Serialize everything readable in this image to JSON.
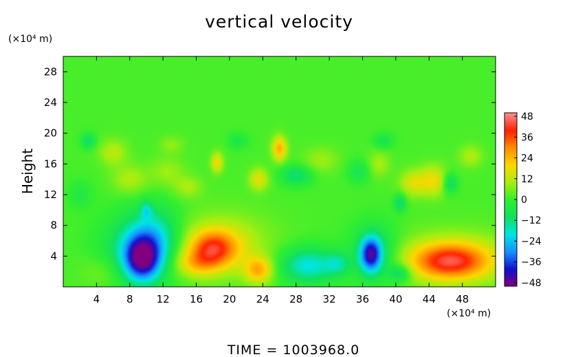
{
  "chart_data": {
    "type": "heatmap",
    "title": "vertical velocity",
    "ylabel": "Height",
    "x_unit_label": "(×10⁴ m)",
    "y_unit_label": "(×10⁴ m)",
    "footer": "TIME  =  1003968.0",
    "xlim": [
      0,
      52
    ],
    "ylim": [
      0,
      30
    ],
    "x_ticks": [
      4,
      8,
      12,
      16,
      20,
      24,
      28,
      32,
      36,
      40,
      44,
      48
    ],
    "y_ticks": [
      4,
      8,
      12,
      16,
      20,
      24,
      28
    ],
    "colorbar": {
      "min": -50,
      "max": 50,
      "ticks": [
        48,
        36,
        24,
        12,
        0,
        -12,
        -24,
        -36,
        -48
      ],
      "tick_labels": [
        "48",
        "36",
        "24",
        "12",
        "0",
        "−12",
        "−24",
        "−36",
        "−48"
      ],
      "colormap": [
        "#800080",
        "#1010d0",
        "#1890ff",
        "#00e5e5",
        "#10e060",
        "#30ee30",
        "#a8ee10",
        "#ffd700",
        "#ff8c00",
        "#ff2000",
        "#ff9090"
      ]
    },
    "background_value": 2,
    "features": [
      {
        "x": 9.5,
        "y": 3.6,
        "sx": 1.5,
        "sy": 2.0,
        "amp": -40
      },
      {
        "x": 9.4,
        "y": 5.0,
        "sx": 3.0,
        "sy": 3.0,
        "amp": -20
      },
      {
        "x": 11.0,
        "y": 7.0,
        "sx": 2.0,
        "sy": 2.5,
        "amp": -12
      },
      {
        "x": 18.0,
        "y": 5.0,
        "sx": 2.0,
        "sy": 1.6,
        "amp": 28
      },
      {
        "x": 19.0,
        "y": 5.5,
        "sx": 4.0,
        "sy": 2.8,
        "amp": 13
      },
      {
        "x": 16.0,
        "y": 3.0,
        "sx": 2.0,
        "sy": 1.2,
        "amp": 15
      },
      {
        "x": 23.5,
        "y": 2.2,
        "sx": 1.2,
        "sy": 1.2,
        "amp": 22
      },
      {
        "x": 29.5,
        "y": 2.8,
        "sx": 2.4,
        "sy": 1.6,
        "amp": -22
      },
      {
        "x": 33.0,
        "y": 3.0,
        "sx": 1.0,
        "sy": 1.0,
        "amp": -12
      },
      {
        "x": 37.0,
        "y": 4.2,
        "sx": 0.9,
        "sy": 1.6,
        "amp": -38
      },
      {
        "x": 37.5,
        "y": 4.5,
        "sx": 2.0,
        "sy": 2.5,
        "amp": -14
      },
      {
        "x": 46.5,
        "y": 3.3,
        "sx": 3.2,
        "sy": 1.6,
        "amp": 32
      },
      {
        "x": 47.0,
        "y": 3.8,
        "sx": 5.0,
        "sy": 2.4,
        "amp": 12
      },
      {
        "x": 40.5,
        "y": 1.8,
        "sx": 1.0,
        "sy": 0.8,
        "amp": -15
      },
      {
        "x": 5.0,
        "y": 2.0,
        "sx": 2.0,
        "sy": 1.5,
        "amp": 5
      },
      {
        "x": 26.0,
        "y": 18.0,
        "sx": 0.6,
        "sy": 1.1,
        "amp": 24
      },
      {
        "x": 18.5,
        "y": 16.2,
        "sx": 0.5,
        "sy": 0.9,
        "amp": 17
      },
      {
        "x": 6.0,
        "y": 17.5,
        "sx": 1.2,
        "sy": 1.2,
        "amp": 10
      },
      {
        "x": 3.0,
        "y": 19.0,
        "sx": 0.6,
        "sy": 0.7,
        "amp": -13
      },
      {
        "x": 28.0,
        "y": 14.5,
        "sx": 1.3,
        "sy": 0.9,
        "amp": -14
      },
      {
        "x": 23.5,
        "y": 14.0,
        "sx": 0.8,
        "sy": 1.0,
        "amp": 15
      },
      {
        "x": 31.0,
        "y": 16.5,
        "sx": 1.5,
        "sy": 1.2,
        "amp": 7
      },
      {
        "x": 35.5,
        "y": 15.0,
        "sx": 0.9,
        "sy": 1.0,
        "amp": -9
      },
      {
        "x": 38.0,
        "y": 16.0,
        "sx": 0.9,
        "sy": 1.2,
        "amp": 8
      },
      {
        "x": 42.0,
        "y": 13.5,
        "sx": 1.1,
        "sy": 1.2,
        "amp": 13
      },
      {
        "x": 44.5,
        "y": 13.8,
        "sx": 1.2,
        "sy": 1.4,
        "amp": 16
      },
      {
        "x": 46.5,
        "y": 13.5,
        "sx": 0.6,
        "sy": 0.9,
        "amp": -15
      },
      {
        "x": 40.5,
        "y": 11.0,
        "sx": 0.5,
        "sy": 0.8,
        "amp": -14
      },
      {
        "x": 10.0,
        "y": 10.0,
        "sx": 0.5,
        "sy": 0.8,
        "amp": -14
      },
      {
        "x": 8.0,
        "y": 14.0,
        "sx": 1.5,
        "sy": 1.3,
        "amp": 9
      },
      {
        "x": 12.5,
        "y": 15.0,
        "sx": 1.5,
        "sy": 1.3,
        "amp": 7
      },
      {
        "x": 15.0,
        "y": 13.0,
        "sx": 1.2,
        "sy": 1.0,
        "amp": 8
      },
      {
        "x": 49.0,
        "y": 17.0,
        "sx": 1.0,
        "sy": 1.0,
        "amp": 9
      },
      {
        "x": 13.0,
        "y": 18.5,
        "sx": 1.0,
        "sy": 0.8,
        "amp": 6
      },
      {
        "x": 21.0,
        "y": 19.0,
        "sx": 0.8,
        "sy": 0.7,
        "amp": -8
      },
      {
        "x": 38.5,
        "y": 19.0,
        "sx": 0.8,
        "sy": 0.7,
        "amp": -9
      },
      {
        "x": 2.0,
        "y": 12.0,
        "sx": 1.0,
        "sy": 1.2,
        "amp": -6
      }
    ]
  }
}
